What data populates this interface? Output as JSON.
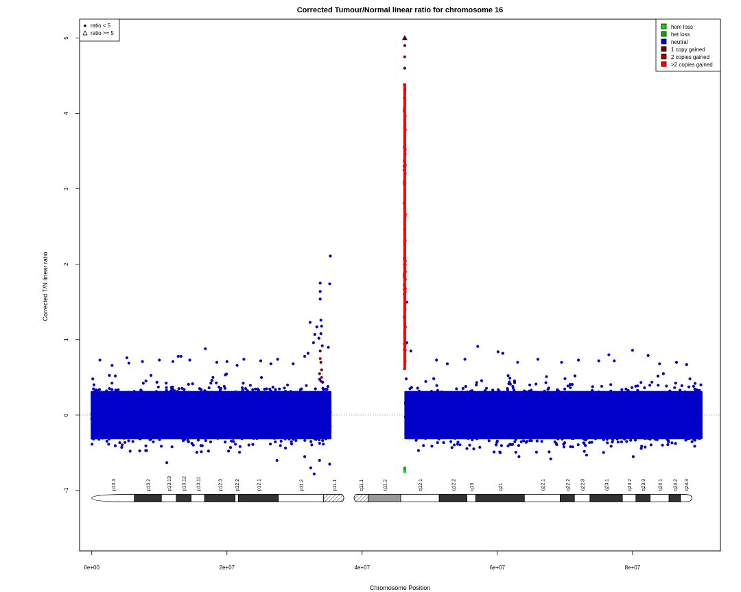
{
  "chart_data": {
    "type": "scatter",
    "title": "Corrected Tumour/Normal linear ratio for chromosome  16",
    "xlabel": "Chromosome Position",
    "ylabel": "Corrected T/N linear ratio",
    "xlim": [
      -1800000,
      93000000
    ],
    "ylim": [
      -1.8,
      5.25
    ],
    "x_ticks": [
      {
        "value": 0,
        "label": "0e+00"
      },
      {
        "value": 20000000,
        "label": "2e+07"
      },
      {
        "value": 40000000,
        "label": "4e+07"
      },
      {
        "value": 60000000,
        "label": "6e+07"
      },
      {
        "value": 80000000,
        "label": "8e+07"
      }
    ],
    "y_ticks": [
      {
        "value": -1,
        "label": "−1"
      },
      {
        "value": 0,
        "label": "0"
      },
      {
        "value": 1,
        "label": "1"
      },
      {
        "value": 2,
        "label": "2"
      },
      {
        "value": 3,
        "label": "3"
      },
      {
        "value": 4,
        "label": "4"
      },
      {
        "value": 5,
        "label": "5"
      }
    ],
    "reference_line": {
      "y": 0,
      "style": "dotted"
    },
    "shape_legend": {
      "placement": "top-left",
      "entries": [
        {
          "symbol": "dot",
          "label": "ratio < 5"
        },
        {
          "symbol": "triangle",
          "label": "ratio >= 5"
        }
      ]
    },
    "color_legend": {
      "placement": "top-right",
      "entries": [
        {
          "label": "hom loss",
          "color": "#00e000"
        },
        {
          "label": "het loss",
          "color": "#00b000"
        },
        {
          "label": "neutral",
          "color": "#0000c8"
        },
        {
          "label": "1 copy gained",
          "color": "#6b0000"
        },
        {
          "label": "2 copies gained",
          "color": "#b30000"
        },
        {
          "label": ">2 copies gained",
          "color": "#ff0000"
        }
      ]
    },
    "series": [
      {
        "name": "neutral",
        "color": "#0000c8",
        "dense_bands": [
          {
            "x": [
              0,
              35300000
            ],
            "y_core": [
              -0.32,
              0.32
            ],
            "y_spread": [
              -0.5,
              0.55
            ]
          },
          {
            "x": [
              46400000,
              90200000
            ],
            "y_core": [
              -0.32,
              0.32
            ],
            "y_spread": [
              -0.5,
              0.55
            ]
          }
        ],
        "points": [
          {
            "x": 1200000,
            "y": 0.73
          },
          {
            "x": 3000000,
            "y": 0.66
          },
          {
            "x": 5200000,
            "y": 0.76
          },
          {
            "x": 5500000,
            "y": 0.69
          },
          {
            "x": 7500000,
            "y": 0.71
          },
          {
            "x": 10000000,
            "y": 0.73
          },
          {
            "x": 12000000,
            "y": 0.71
          },
          {
            "x": 12800000,
            "y": 0.78
          },
          {
            "x": 13200000,
            "y": 0.78
          },
          {
            "x": 14500000,
            "y": 0.73
          },
          {
            "x": 16800000,
            "y": 0.88
          },
          {
            "x": 18500000,
            "y": 0.7
          },
          {
            "x": 20000000,
            "y": 0.71
          },
          {
            "x": 21500000,
            "y": 0.66
          },
          {
            "x": 22500000,
            "y": 0.74
          },
          {
            "x": 25000000,
            "y": 0.72
          },
          {
            "x": 26500000,
            "y": 0.68
          },
          {
            "x": 27500000,
            "y": 0.74
          },
          {
            "x": 29800000,
            "y": 0.68
          },
          {
            "x": 31500000,
            "y": 0.78
          },
          {
            "x": 32000000,
            "y": 0.82
          },
          {
            "x": 32300000,
            "y": 1.23
          },
          {
            "x": 32800000,
            "y": 0.96
          },
          {
            "x": 33000000,
            "y": 1.07
          },
          {
            "x": 33300000,
            "y": 1.17
          },
          {
            "x": 33600000,
            "y": 1.02
          },
          {
            "x": 33900000,
            "y": 1.08
          },
          {
            "x": 33800000,
            "y": 1.54
          },
          {
            "x": 33800000,
            "y": 1.64
          },
          {
            "x": 33800000,
            "y": 1.75
          },
          {
            "x": 33900000,
            "y": 1.26
          },
          {
            "x": 34000000,
            "y": 1.18
          },
          {
            "x": 34100000,
            "y": 0.92
          },
          {
            "x": 35000000,
            "y": 0.9
          },
          {
            "x": 35200000,
            "y": 1.74
          },
          {
            "x": 35300000,
            "y": 2.11
          },
          {
            "x": 11100000,
            "y": -0.63
          },
          {
            "x": 27400000,
            "y": -0.6
          },
          {
            "x": 31500000,
            "y": -0.55
          },
          {
            "x": 32400000,
            "y": -0.7
          },
          {
            "x": 32900000,
            "y": -0.78
          },
          {
            "x": 33700000,
            "y": -0.6
          },
          {
            "x": 35200000,
            "y": -0.65
          },
          {
            "x": 47200000,
            "y": 0.85
          },
          {
            "x": 51000000,
            "y": 0.73
          },
          {
            "x": 52600000,
            "y": 0.68
          },
          {
            "x": 55200000,
            "y": 0.74
          },
          {
            "x": 57100000,
            "y": 0.91
          },
          {
            "x": 60100000,
            "y": 0.84
          },
          {
            "x": 60800000,
            "y": 0.82
          },
          {
            "x": 63000000,
            "y": 0.7
          },
          {
            "x": 66000000,
            "y": 0.74
          },
          {
            "x": 69500000,
            "y": 0.7
          },
          {
            "x": 72000000,
            "y": 0.73
          },
          {
            "x": 75000000,
            "y": 0.72
          },
          {
            "x": 76500000,
            "y": 0.8
          },
          {
            "x": 77300000,
            "y": 0.72
          },
          {
            "x": 80000000,
            "y": 0.86
          },
          {
            "x": 82300000,
            "y": 0.79
          },
          {
            "x": 84000000,
            "y": 0.68
          },
          {
            "x": 86500000,
            "y": 0.7
          },
          {
            "x": 88000000,
            "y": 0.67
          },
          {
            "x": 63200000,
            "y": -0.55
          },
          {
            "x": 67900000,
            "y": -0.58
          },
          {
            "x": 73200000,
            "y": -0.53
          },
          {
            "x": 80100000,
            "y": -0.55
          },
          {
            "x": 46600000,
            "y": 1.5
          },
          {
            "x": 46600000,
            "y": 0.96
          }
        ]
      },
      {
        "name": "1 copy gained",
        "color": "#6b0000",
        "points": [
          {
            "x": 33800000,
            "y": 0.85
          },
          {
            "x": 33900000,
            "y": 0.7
          },
          {
            "x": 34000000,
            "y": 0.6
          },
          {
            "x": 33700000,
            "y": 0.55
          },
          {
            "x": 33900000,
            "y": 0.45
          },
          {
            "x": 46300000,
            "y": 3.6
          },
          {
            "x": 46300000,
            "y": 3.3
          },
          {
            "x": 46300000,
            "y": 2.9
          },
          {
            "x": 46300000,
            "y": 2.4
          },
          {
            "x": 46300000,
            "y": 2.0
          },
          {
            "x": 46300000,
            "y": 1.7
          },
          {
            "x": 46300000,
            "y": 1.4
          },
          {
            "x": 46300000,
            "y": 1.2
          },
          {
            "x": 46300000,
            "y": 4.9
          },
          {
            "x": 46300000,
            "y": 4.6
          }
        ]
      },
      {
        "name": "2 copies gained",
        "color": "#b30000",
        "points": [
          {
            "x": 33800000,
            "y": 0.75
          },
          {
            "x": 34000000,
            "y": 0.5
          },
          {
            "x": 46300000,
            "y": 4.75
          },
          {
            "x": 46300000,
            "y": 4.3
          },
          {
            "x": 46300000,
            "y": 3.8
          },
          {
            "x": 46300000,
            "y": 3.1
          },
          {
            "x": 46300000,
            "y": 2.6
          },
          {
            "x": 46300000,
            "y": 2.2
          },
          {
            "x": 46300000,
            "y": 1.85
          },
          {
            "x": 46300000,
            "y": 1.6
          },
          {
            "x": 46300000,
            "y": 1.3
          }
        ]
      },
      {
        "name": ">2 copies gained",
        "color": "#ff0000",
        "dense_bands": [
          {
            "x": [
              46300000,
              46300000
            ],
            "y_core": [
              0.8,
              4.4
            ],
            "y_spread": [
              0.6,
              4.4
            ]
          }
        ],
        "points": [
          {
            "x": 46300000,
            "y": 4.1
          },
          {
            "x": 46300000,
            "y": 3.9
          },
          {
            "x": 46300000,
            "y": 3.45
          },
          {
            "x": 46300000,
            "y": 2.75
          },
          {
            "x": 46300000,
            "y": 2.3
          },
          {
            "x": 46300000,
            "y": 1.95
          }
        ]
      },
      {
        "name": "het loss",
        "color": "#00b000",
        "points": [
          {
            "x": 46300000,
            "y": -0.7
          },
          {
            "x": 46300000,
            "y": -0.72
          }
        ]
      },
      {
        "name": "hom loss",
        "color": "#00e000",
        "points": [
          {
            "x": 46300000,
            "y": -0.75
          }
        ]
      },
      {
        "name": "ratio >= 5",
        "marker": "triangle",
        "color": "#6b0000",
        "points": [
          {
            "x": 46300000,
            "y": 5.0
          }
        ]
      }
    ],
    "ideogram": {
      "y": -1.1,
      "bands": [
        {
          "name": "p13.3",
          "start": 0,
          "end": 6300000,
          "stain": "gneg"
        },
        {
          "name": "p13.2",
          "start": 6300000,
          "end": 10300000,
          "stain": "gpos"
        },
        {
          "name": "p13.13",
          "start": 10300000,
          "end": 12500000,
          "stain": "gneg"
        },
        {
          "name": "p13.12",
          "start": 12500000,
          "end": 14700000,
          "stain": "gpos"
        },
        {
          "name": "p13.11",
          "start": 14700000,
          "end": 16700000,
          "stain": "gneg"
        },
        {
          "name": "p12.3",
          "start": 16700000,
          "end": 21200000,
          "stain": "gpos"
        },
        {
          "name": "p12.2",
          "start": 21200000,
          "end": 21700000,
          "stain": "gneg"
        },
        {
          "name": "p12.1",
          "start": 21700000,
          "end": 27600000,
          "stain": "gpos"
        },
        {
          "name": "p11.2",
          "start": 27600000,
          "end": 34300000,
          "stain": "gneg"
        },
        {
          "name": "p11.1",
          "start": 34300000,
          "end": 37400000,
          "stain": "stalk"
        },
        {
          "name": "q11.1",
          "start": 38700000,
          "end": 40900000,
          "stain": "stalk"
        },
        {
          "name": "q11.2",
          "start": 40900000,
          "end": 45700000,
          "stain": "gvar"
        },
        {
          "name": "q12.1",
          "start": 45700000,
          "end": 51400000,
          "stain": "gneg"
        },
        {
          "name": "q12.2",
          "start": 51400000,
          "end": 55500000,
          "stain": "gpos"
        },
        {
          "name": "q13",
          "start": 55500000,
          "end": 56800000,
          "stain": "gneg"
        },
        {
          "name": "q21",
          "start": 56800000,
          "end": 64000000,
          "stain": "gpos"
        },
        {
          "name": "q22.1",
          "start": 64000000,
          "end": 69300000,
          "stain": "gneg"
        },
        {
          "name": "q22.2",
          "start": 69300000,
          "end": 71400000,
          "stain": "gpos"
        },
        {
          "name": "q22.3",
          "start": 71400000,
          "end": 73700000,
          "stain": "gneg"
        },
        {
          "name": "q23.1",
          "start": 73700000,
          "end": 78500000,
          "stain": "gpos"
        },
        {
          "name": "q23.2",
          "start": 78500000,
          "end": 80500000,
          "stain": "gneg"
        },
        {
          "name": "q23.3",
          "start": 80500000,
          "end": 82600000,
          "stain": "gpos"
        },
        {
          "name": "q24.1",
          "start": 82600000,
          "end": 85400000,
          "stain": "gneg"
        },
        {
          "name": "q24.2",
          "start": 85400000,
          "end": 87100000,
          "stain": "gpos"
        },
        {
          "name": "q24.3",
          "start": 87100000,
          "end": 88800000,
          "stain": "gneg"
        }
      ]
    }
  }
}
